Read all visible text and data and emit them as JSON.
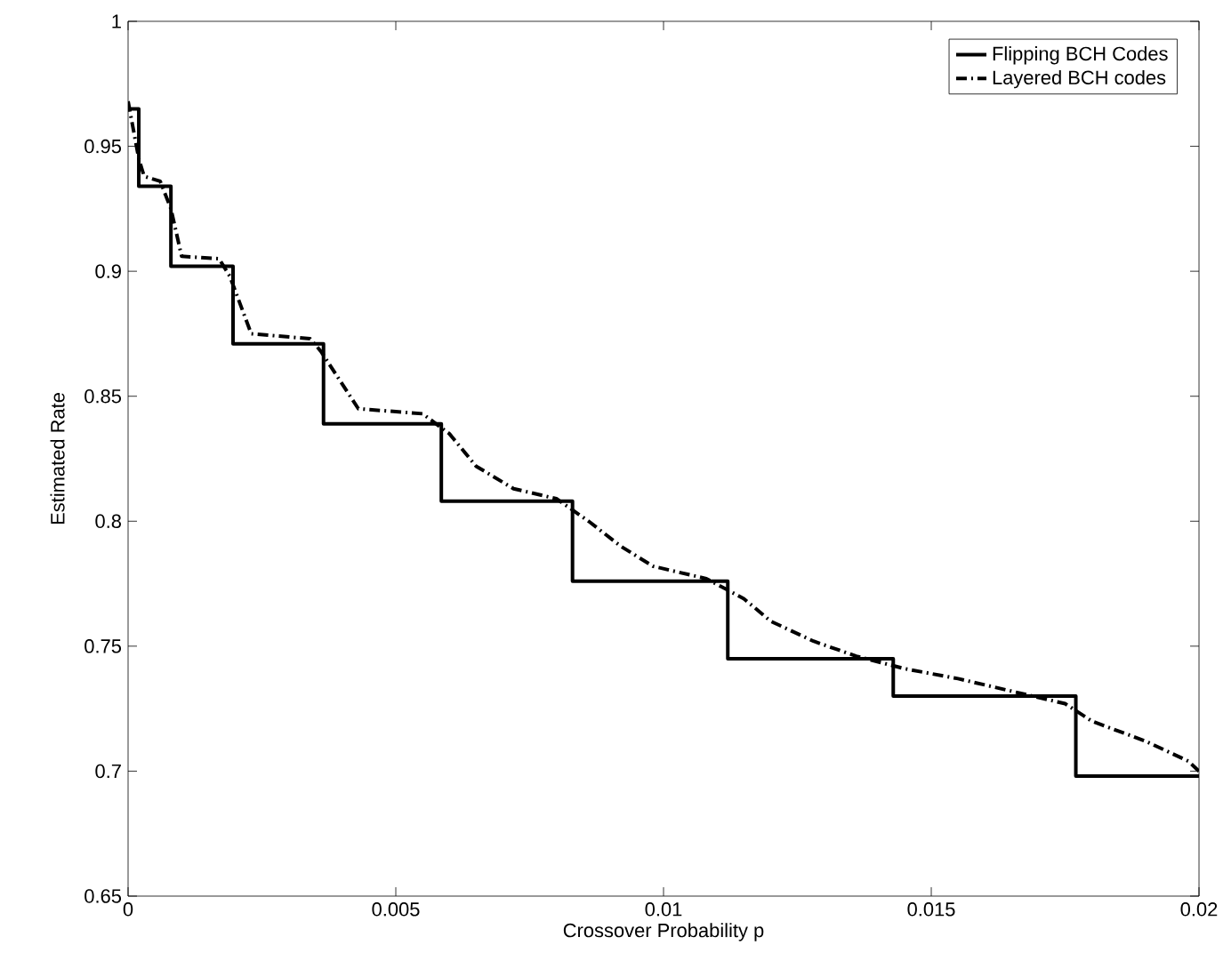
{
  "chart_data": {
    "type": "line",
    "xlabel": "Crossover Probability p",
    "ylabel": "Estimated Rate",
    "xlim": [
      0,
      0.02
    ],
    "ylim": [
      0.65,
      1
    ],
    "xticks": [
      0,
      {
        "value": 0.005,
        "label": "0.005"
      },
      0.01,
      0.015,
      0.02
    ],
    "yticks": [
      0.65,
      0.7,
      0.75,
      0.8,
      0.85,
      0.9,
      0.95,
      1
    ],
    "legend": "top right",
    "marker": "none",
    "grid": false,
    "series": [
      {
        "name": "Flipping BCH Codes",
        "color": "#000000",
        "type": "step",
        "line_style": "solid",
        "x": [
          0,
          0.0002,
          0.0008,
          0.00196,
          0.00365,
          0.00585,
          0.0083,
          0.0112,
          0.01429,
          0.0177,
          0.02
        ],
        "values": [
          0.965,
          0.934,
          0.902,
          0.871,
          0.839,
          0.808,
          0.776,
          0.745,
          0.73,
          0.698,
          0.698
        ]
      },
      {
        "name": "Layered BCH codes",
        "color": "#000000",
        "line_style": "dashdot",
        "x": [
          0,
          0.0002,
          0.0003,
          0.0006,
          0.0008,
          0.001,
          0.0017,
          0.0019,
          0.0023,
          0.0034,
          0.0036,
          0.0043,
          0.0055,
          0.006,
          0.0065,
          0.0072,
          0.008,
          0.0086,
          0.0092,
          0.0098,
          0.0108,
          0.0115,
          0.012,
          0.0128,
          0.0136,
          0.0145,
          0.0155,
          0.0165,
          0.0175,
          0.018,
          0.019,
          0.0198,
          0.02
        ],
        "values": [
          0.968,
          0.945,
          0.938,
          0.936,
          0.925,
          0.906,
          0.905,
          0.898,
          0.875,
          0.873,
          0.868,
          0.845,
          0.843,
          0.835,
          0.822,
          0.813,
          0.809,
          0.8,
          0.79,
          0.782,
          0.777,
          0.769,
          0.76,
          0.752,
          0.746,
          0.741,
          0.737,
          0.732,
          0.727,
          0.72,
          0.712,
          0.704,
          0.7
        ]
      }
    ]
  }
}
